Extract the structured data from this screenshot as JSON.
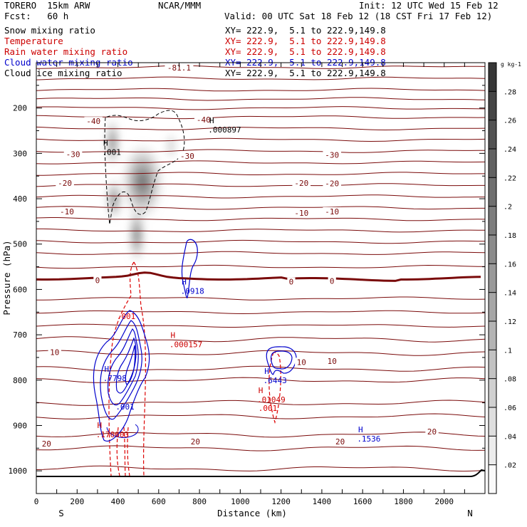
{
  "header": {
    "model": "TORERO  15km ARW",
    "org": "NCAR/MMM",
    "init": "Init: 12 UTC Wed 15 Feb 12",
    "fcst": "Fcst:   60 h",
    "valid": "Valid: 00 UTC Sat 18 Feb 12 (18 CST Fri 17 Feb 12)"
  },
  "legend": [
    {
      "name": "Snow mixing ratio",
      "xy": "XY= 222.9,  5.1 to 222.9,149.8",
      "color": "#000000",
      "xycolor": "#000000"
    },
    {
      "name": "Temperature",
      "xy": "XY= 222.9,  5.1 to 222.9,149.8",
      "color": "#cc0000",
      "xycolor": "#cc0000"
    },
    {
      "name": "Rain water mixing ratio",
      "xy": "XY= 222.9,  5.1 to 222.9,149.8",
      "color": "#cc0000",
      "xycolor": "#cc0000"
    },
    {
      "name": "Cloud water mixing ratio",
      "xy": "XY= 222.9,  5.1 to 222.9,149.8",
      "color": "#0000cc",
      "xycolor": "#0000cc"
    },
    {
      "name": "Cloud ice mixing ratio",
      "xy": "XY= 222.9,  5.1 to 222.9,149.8",
      "color": "#000000",
      "xycolor": "#000000"
    }
  ],
  "colors": {
    "temperature": "#7a0a0a",
    "rain": "#dd0000",
    "cloud_water": "#0000cc",
    "snow": "#000000",
    "ground": "#000000"
  },
  "chart_data": {
    "type": "cross-section",
    "xlabel": "Distance (km)",
    "ylabel": "Pressure (hPa)",
    "xlim": [
      0,
      2200
    ],
    "ylim": [
      100,
      1050
    ],
    "xticks": [
      0,
      100,
      200,
      300,
      400,
      500,
      600,
      700,
      800,
      900,
      1000,
      1100,
      1200,
      1300,
      1400,
      1500,
      1600,
      1700,
      1800,
      1900,
      2000,
      2100
    ],
    "xtick_labels": [
      "0",
      "200",
      "400",
      "600",
      "800",
      "1000",
      "1200",
      "1400",
      "1600",
      "1800",
      "2000"
    ],
    "xtick_label_values": [
      0,
      200,
      400,
      600,
      800,
      1000,
      1200,
      1400,
      1600,
      1800,
      2000
    ],
    "yticks": [
      200,
      300,
      400,
      500,
      600,
      700,
      800,
      900,
      1000
    ],
    "y_minor_ticks": [
      150,
      250,
      350,
      450,
      550,
      650,
      750,
      850,
      950,
      1050
    ],
    "endpoints": {
      "left": "S",
      "right": "N"
    },
    "isotherm_levels_hPa": [
      110,
      135,
      160,
      180,
      200,
      220,
      245,
      270,
      295,
      320,
      345,
      370,
      395,
      420,
      445,
      470,
      495,
      520,
      550,
      575,
      620,
      650,
      680,
      710,
      740,
      775,
      800,
      850,
      880,
      920,
      950,
      995
    ],
    "zero_isotherm_hPa": 575,
    "temp_labels": [
      {
        "text": "-81.1",
        "x": 700,
        "p": 111
      },
      {
        "text": "-40",
        "x": 280,
        "p": 229
      },
      {
        "text": "-40",
        "x": 820,
        "p": 226
      },
      {
        "text": "-30",
        "x": 180,
        "p": 302
      },
      {
        "text": "-30",
        "x": 740,
        "p": 306
      },
      {
        "text": "-30",
        "x": 1450,
        "p": 303
      },
      {
        "text": "-20",
        "x": 140,
        "p": 365
      },
      {
        "text": "-20",
        "x": 1300,
        "p": 365
      },
      {
        "text": "-20",
        "x": 1450,
        "p": 366
      },
      {
        "text": "-10",
        "x": 150,
        "p": 428
      },
      {
        "text": "-10",
        "x": 1300,
        "p": 431
      },
      {
        "text": "-10",
        "x": 1450,
        "p": 428
      },
      {
        "text": "0",
        "x": 300,
        "p": 580
      },
      {
        "text": "0",
        "x": 1250,
        "p": 583
      },
      {
        "text": "0",
        "x": 1450,
        "p": 581
      },
      {
        "text": "10",
        "x": 90,
        "p": 738
      },
      {
        "text": "10",
        "x": 1300,
        "p": 760
      },
      {
        "text": "10",
        "x": 1450,
        "p": 758
      },
      {
        "text": "20",
        "x": 50,
        "p": 940
      },
      {
        "text": "20",
        "x": 780,
        "p": 935
      },
      {
        "text": "20",
        "x": 1490,
        "p": 935
      },
      {
        "text": "20",
        "x": 1940,
        "p": 913
      }
    ],
    "maxima": [
      {
        "marker": "H",
        "value": ".000897",
        "x": 860,
        "p": 238,
        "color": "#000000"
      },
      {
        "marker": "H",
        "value": ".001",
        "x": 340,
        "p": 288,
        "color": "#000000"
      },
      {
        "marker": "H",
        "value": ".0918",
        "x": 725,
        "p": 594,
        "color": "#0000cc"
      },
      {
        "marker": "H",
        "value": ".000157",
        "x": 670,
        "p": 712,
        "color": "#cc0000"
      },
      {
        "marker": "H",
        "value": ".7798",
        "x": 345,
        "p": 786,
        "color": "#0000cc"
      },
      {
        "marker": "H",
        "value": ".6443",
        "x": 1130,
        "p": 791,
        "color": "#0000cc"
      },
      {
        "marker": "H",
        "value": ".01049",
        "x": 1100,
        "p": 833,
        "color": "#cc0000"
      },
      {
        "marker": "H",
        "value": ".170603",
        "x": 310,
        "p": 910,
        "color": "#cc0000"
      },
      {
        "marker": "H",
        "value": ".1536",
        "x": 1590,
        "p": 920,
        "color": "#0000cc"
      }
    ],
    "rain_labels": [
      {
        "text": ".001",
        "x": 440,
        "p": 665
      },
      {
        "text": ".001",
        "x": 1135,
        "p": 868
      }
    ],
    "cloud_water_labels": [
      {
        "text": ".001",
        "x": 435,
        "p": 865
      }
    ],
    "colorbar": {
      "unit": "g kg-1",
      "levels": [
        0.02,
        0.04,
        0.06,
        0.08,
        0.1,
        0.12,
        0.14,
        0.16,
        0.18,
        0.2,
        0.22,
        0.24,
        0.26,
        0.28
      ],
      "tick_labels": [
        ".02",
        ".04",
        ".06",
        ".08",
        ".1",
        ".12",
        ".14",
        ".16",
        ".18",
        ".2",
        ".22",
        ".24",
        ".26",
        ".28"
      ]
    }
  }
}
